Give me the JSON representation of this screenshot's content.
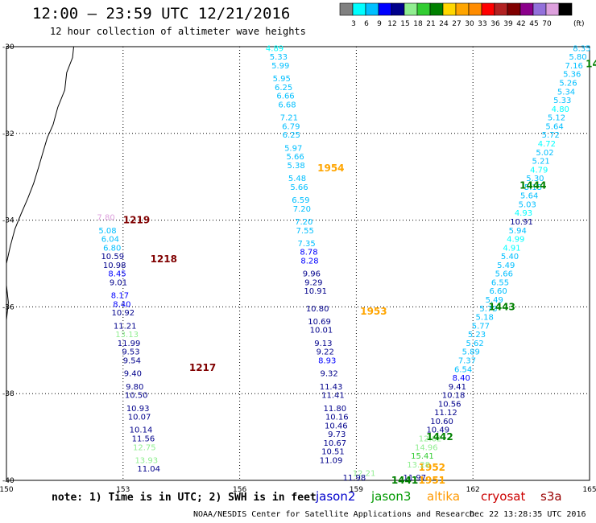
{
  "title": "12:00 – 23:59 UTC 12/21/2016",
  "subtitle": "12 hour collection of altimeter wave heights",
  "colorbar": {
    "unit_label": "(ft)",
    "colors": [
      "#808080",
      "#00ffff",
      "#00bfff",
      "#0000ff",
      "#00008b",
      "#90ee90",
      "#32cd32",
      "#008000",
      "#ffd700",
      "#ffa500",
      "#ff8c00",
      "#ff0000",
      "#b22222",
      "#800000",
      "#8b008b",
      "#9370db",
      "#dda0dd",
      "#000000"
    ],
    "labels": [
      "3",
      "6",
      "9",
      "12",
      "15",
      "18",
      "21",
      "24",
      "27",
      "30",
      "33",
      "36",
      "39",
      "42",
      "45",
      "70"
    ]
  },
  "footer": {
    "note": "note: 1) Time is in UTC; 2) SWH is in feet",
    "satellites": [
      {
        "name": "jason2",
        "color": "#0000cc"
      },
      {
        "name": "jason3",
        "color": "#009900"
      },
      {
        "name": "altika",
        "color": "#ff9900"
      },
      {
        "name": "cryosat",
        "color": "#cc0000"
      },
      {
        "name": "s3a",
        "color": "#990000"
      }
    ],
    "credit": "NOAA/NESDIS Center for Satellite Applications and Research",
    "timestamp": "Dec 22 13:28:35 UTC 2016"
  },
  "chart_data": {
    "type": "scatter",
    "xlim": [
      150,
      165
    ],
    "ylim": [
      -40,
      -30
    ],
    "x_ticks": [
      "150",
      "153",
      "156",
      "159",
      "162",
      "165"
    ],
    "y_ticks": [
      "-30",
      "-32",
      "-34",
      "-36",
      "-38",
      "-40"
    ],
    "grid": true,
    "tracks": [
      {
        "name": "track-1217",
        "time_label": "1217",
        "time_color": "#800000",
        "label_lon": 154.7,
        "label_lat": -37.4,
        "points": [
          {
            "lon": 152.56,
            "lat": -34.0,
            "v": "7.80",
            "c": "#dda0dd"
          },
          {
            "lon": 152.6,
            "lat": -34.3,
            "v": "5.08",
            "c": "#00bfff"
          },
          {
            "lon": 152.67,
            "lat": -34.5,
            "v": "6.04",
            "c": "#00bfff"
          },
          {
            "lon": 152.72,
            "lat": -34.7,
            "v": "6.80",
            "c": "#00bfff"
          },
          {
            "lon": 152.73,
            "lat": -34.9,
            "v": "10.59",
            "c": "#00008b"
          },
          {
            "lon": 152.78,
            "lat": -35.1,
            "v": "10.98",
            "c": "#00008b"
          },
          {
            "lon": 152.85,
            "lat": -35.3,
            "v": "8.45",
            "c": "#0000ff"
          },
          {
            "lon": 152.88,
            "lat": -35.5,
            "v": "9.01",
            "c": "#00008b"
          },
          {
            "lon": 152.92,
            "lat": -35.8,
            "v": "8.17",
            "c": "#0000ff"
          },
          {
            "lon": 152.97,
            "lat": -36.0,
            "v": "8.40",
            "c": "#0000ff"
          },
          {
            "lon": 153.0,
            "lat": -36.2,
            "v": "10.92",
            "c": "#00008b"
          },
          {
            "lon": 153.05,
            "lat": -36.5,
            "v": "11.21",
            "c": "#00008b"
          },
          {
            "lon": 153.1,
            "lat": -36.7,
            "v": "13.13",
            "c": "#90ee90"
          },
          {
            "lon": 153.15,
            "lat": -36.9,
            "v": "11.99",
            "c": "#00008b"
          },
          {
            "lon": 153.2,
            "lat": -37.1,
            "v": "9.53",
            "c": "#00008b"
          },
          {
            "lon": 153.23,
            "lat": -37.3,
            "v": "9.54",
            "c": "#00008b"
          },
          {
            "lon": 153.25,
            "lat": -37.6,
            "v": "9.40",
            "c": "#00008b"
          },
          {
            "lon": 153.3,
            "lat": -37.9,
            "v": "9.80",
            "c": "#00008b"
          },
          {
            "lon": 153.34,
            "lat": -38.1,
            "v": "10.50",
            "c": "#00008b"
          },
          {
            "lon": 153.38,
            "lat": -38.4,
            "v": "10.93",
            "c": "#00008b"
          },
          {
            "lon": 153.42,
            "lat": -38.6,
            "v": "10.07",
            "c": "#00008b"
          },
          {
            "lon": 153.46,
            "lat": -38.9,
            "v": "10.14",
            "c": "#00008b"
          },
          {
            "lon": 153.52,
            "lat": -39.1,
            "v": "11.56",
            "c": "#00008b"
          },
          {
            "lon": 153.55,
            "lat": -39.3,
            "v": "12.75",
            "c": "#90ee90"
          },
          {
            "lon": 153.6,
            "lat": -39.6,
            "v": "13.93",
            "c": "#90ee90"
          },
          {
            "lon": 153.66,
            "lat": -39.8,
            "v": "11.04",
            "c": "#00008b"
          }
        ]
      },
      {
        "name": "track-1218",
        "time_label": "1218",
        "time_color": "#800000",
        "label_lon": 153.7,
        "label_lat": -34.9,
        "points": []
      },
      {
        "name": "track-1219",
        "time_label": "1219",
        "time_color": "#800000",
        "label_lon": 153.0,
        "label_lat": -34.0,
        "points": []
      },
      {
        "name": "track-1954",
        "time_label": "1954",
        "time_color": "#ffa500",
        "label_lon": 158.0,
        "label_lat": -32.8,
        "points": [
          {
            "lon": 156.9,
            "lat": -30.1,
            "v": "4.89",
            "c": "#00ffff"
          },
          {
            "lon": 157.0,
            "lat": -30.3,
            "v": "5.33",
            "c": "#00bfff"
          },
          {
            "lon": 157.05,
            "lat": -30.5,
            "v": "5.99",
            "c": "#00bfff"
          },
          {
            "lon": 157.08,
            "lat": -30.8,
            "v": "5.95",
            "c": "#00bfff"
          },
          {
            "lon": 157.13,
            "lat": -31.0,
            "v": "6.25",
            "c": "#00bfff"
          },
          {
            "lon": 157.18,
            "lat": -31.2,
            "v": "6.66",
            "c": "#00bfff"
          },
          {
            "lon": 157.22,
            "lat": -31.4,
            "v": "6.68",
            "c": "#00bfff"
          },
          {
            "lon": 157.27,
            "lat": -31.7,
            "v": "7.21",
            "c": "#00bfff"
          },
          {
            "lon": 157.32,
            "lat": -31.9,
            "v": "6.79",
            "c": "#00bfff"
          },
          {
            "lon": 157.33,
            "lat": -32.1,
            "v": "6.25",
            "c": "#00bfff"
          },
          {
            "lon": 157.38,
            "lat": -32.4,
            "v": "5.97",
            "c": "#00bfff"
          },
          {
            "lon": 157.43,
            "lat": -32.6,
            "v": "5.66",
            "c": "#00bfff"
          },
          {
            "lon": 157.45,
            "lat": -32.8,
            "v": "5.38",
            "c": "#00bfff"
          },
          {
            "lon": 157.48,
            "lat": -33.1,
            "v": "5.48",
            "c": "#00bfff"
          },
          {
            "lon": 157.53,
            "lat": -33.3,
            "v": "5.66",
            "c": "#00bfff"
          },
          {
            "lon": 157.57,
            "lat": -33.6,
            "v": "6.59",
            "c": "#00bfff"
          },
          {
            "lon": 157.6,
            "lat": -33.8,
            "v": "7.20",
            "c": "#00bfff"
          },
          {
            "lon": 157.65,
            "lat": -34.1,
            "v": "7.20",
            "c": "#00bfff"
          },
          {
            "lon": 157.68,
            "lat": -34.3,
            "v": "7.55",
            "c": "#00bfff"
          },
          {
            "lon": 157.72,
            "lat": -34.6,
            "v": "7.35",
            "c": "#00bfff"
          },
          {
            "lon": 157.78,
            "lat": -34.8,
            "v": "8.78",
            "c": "#0000ff"
          },
          {
            "lon": 157.8,
            "lat": -35.0,
            "v": "8.28",
            "c": "#0000ff"
          },
          {
            "lon": 157.85,
            "lat": -35.3,
            "v": "9.96",
            "c": "#00008b"
          },
          {
            "lon": 157.9,
            "lat": -35.5,
            "v": "9.29",
            "c": "#00008b"
          },
          {
            "lon": 157.95,
            "lat": -35.7,
            "v": "10.91",
            "c": "#00008b"
          }
        ]
      },
      {
        "name": "track-1953",
        "time_label": "1953",
        "time_color": "#ffa500",
        "label_lon": 159.1,
        "label_lat": -36.1,
        "points": [
          {
            "lon": 158.0,
            "lat": -36.1,
            "v": "10.80",
            "c": "#00008b"
          },
          {
            "lon": 158.05,
            "lat": -36.4,
            "v": "10.69",
            "c": "#00008b"
          },
          {
            "lon": 158.1,
            "lat": -36.6,
            "v": "10.01",
            "c": "#00008b"
          },
          {
            "lon": 158.15,
            "lat": -36.9,
            "v": "9.13",
            "c": "#00008b"
          },
          {
            "lon": 158.2,
            "lat": -37.1,
            "v": "9.22",
            "c": "#00008b"
          },
          {
            "lon": 158.25,
            "lat": -37.3,
            "v": "8.93",
            "c": "#0000ff"
          },
          {
            "lon": 158.3,
            "lat": -37.6,
            "v": "9.32",
            "c": "#00008b"
          },
          {
            "lon": 158.35,
            "lat": -37.9,
            "v": "11.43",
            "c": "#00008b"
          },
          {
            "lon": 158.4,
            "lat": -38.1,
            "v": "11.41",
            "c": "#00008b"
          },
          {
            "lon": 158.45,
            "lat": -38.4,
            "v": "11.80",
            "c": "#00008b"
          },
          {
            "lon": 158.5,
            "lat": -38.6,
            "v": "10.16",
            "c": "#00008b"
          },
          {
            "lon": 158.48,
            "lat": -38.8,
            "v": "10.46",
            "c": "#00008b"
          },
          {
            "lon": 158.5,
            "lat": -39.0,
            "v": "9.73",
            "c": "#00008b"
          },
          {
            "lon": 158.45,
            "lat": -39.2,
            "v": "10.67",
            "c": "#00008b"
          },
          {
            "lon": 158.4,
            "lat": -39.4,
            "v": "10.51",
            "c": "#00008b"
          },
          {
            "lon": 158.35,
            "lat": -39.6,
            "v": "11.09",
            "c": "#00008b"
          }
        ]
      },
      {
        "name": "track-1952",
        "time_label": "1952",
        "time_color": "#ffa500",
        "label_lon": 160.6,
        "label_lat": -39.7,
        "points": [
          {
            "lon": 159.2,
            "lat": -39.9,
            "v": "12.21",
            "c": "#90ee90"
          },
          {
            "lon": 158.95,
            "lat": -40.0,
            "v": "11.98",
            "c": "#00008b"
          }
        ]
      },
      {
        "name": "track-1951",
        "time_label": "1951",
        "time_color": "#ffa500",
        "label_lon": 160.6,
        "label_lat": -40.0,
        "points": []
      },
      {
        "name": "track-1444",
        "time_label": "1444",
        "time_color": "#008000",
        "label_lon": 163.2,
        "label_lat": -33.2,
        "points": [
          {
            "lon": 164.8,
            "lat": -30.1,
            "v": "8.35",
            "c": "#00bfff"
          },
          {
            "lon": 164.7,
            "lat": -30.3,
            "v": "5.80",
            "c": "#00bfff"
          },
          {
            "lon": 164.6,
            "lat": -30.5,
            "v": "7.16",
            "c": "#00bfff"
          },
          {
            "lon": 164.55,
            "lat": -30.7,
            "v": "5.36",
            "c": "#00bfff"
          },
          {
            "lon": 164.45,
            "lat": -30.9,
            "v": "5.26",
            "c": "#00bfff"
          },
          {
            "lon": 164.4,
            "lat": -31.1,
            "v": "5.34",
            "c": "#00bfff"
          },
          {
            "lon": 164.3,
            "lat": -31.3,
            "v": "5.33",
            "c": "#00bfff"
          },
          {
            "lon": 164.25,
            "lat": -31.5,
            "v": "4.80",
            "c": "#00ffff"
          },
          {
            "lon": 164.15,
            "lat": -31.7,
            "v": "5.12",
            "c": "#00bfff"
          },
          {
            "lon": 164.1,
            "lat": -31.9,
            "v": "5.64",
            "c": "#00bfff"
          },
          {
            "lon": 164.0,
            "lat": -32.1,
            "v": "5.72",
            "c": "#00bfff"
          },
          {
            "lon": 163.9,
            "lat": -32.3,
            "v": "4.72",
            "c": "#00ffff"
          },
          {
            "lon": 163.85,
            "lat": -32.5,
            "v": "5.02",
            "c": "#00bfff"
          },
          {
            "lon": 163.75,
            "lat": -32.7,
            "v": "5.21",
            "c": "#00bfff"
          },
          {
            "lon": 163.7,
            "lat": -32.9,
            "v": "4.79",
            "c": "#00ffff"
          },
          {
            "lon": 163.6,
            "lat": -33.1,
            "v": "5.30",
            "c": "#00bfff"
          },
          {
            "lon": 163.55,
            "lat": -33.3,
            "v": "5.15",
            "c": "#00bfff"
          },
          {
            "lon": 163.45,
            "lat": -33.5,
            "v": "5.64",
            "c": "#00bfff"
          },
          {
            "lon": 163.4,
            "lat": -33.7,
            "v": "5.03",
            "c": "#00bfff"
          },
          {
            "lon": 163.3,
            "lat": -33.9,
            "v": "4.93",
            "c": "#00ffff"
          },
          {
            "lon": 163.25,
            "lat": -34.1,
            "v": "10.91",
            "c": "#00008b"
          },
          {
            "lon": 163.15,
            "lat": -34.3,
            "v": "5.94",
            "c": "#00bfff"
          },
          {
            "lon": 163.1,
            "lat": -34.5,
            "v": "4.99",
            "c": "#00ffff"
          },
          {
            "lon": 163.0,
            "lat": -34.7,
            "v": "4.91",
            "c": "#00ffff"
          },
          {
            "lon": 162.95,
            "lat": -34.9,
            "v": "5.40",
            "c": "#00bfff"
          },
          {
            "lon": 162.85,
            "lat": -35.1,
            "v": "5.49",
            "c": "#00bfff"
          },
          {
            "lon": 162.8,
            "lat": -35.3,
            "v": "5.66",
            "c": "#00bfff"
          },
          {
            "lon": 162.7,
            "lat": -35.5,
            "v": "6.55",
            "c": "#00bfff"
          },
          {
            "lon": 162.65,
            "lat": -35.7,
            "v": "6.60",
            "c": "#00bfff"
          },
          {
            "lon": 162.55,
            "lat": -35.9,
            "v": "5.49",
            "c": "#00bfff"
          }
        ]
      },
      {
        "name": "track-1443",
        "time_label": "1443",
        "time_color": "#008000",
        "label_lon": 162.4,
        "label_lat": -36.0,
        "points": [
          {
            "lon": 162.4,
            "lat": -36.1,
            "v": "5.73",
            "c": "#00bfff"
          },
          {
            "lon": 162.3,
            "lat": -36.3,
            "v": "5.18",
            "c": "#00bfff"
          },
          {
            "lon": 162.2,
            "lat": -36.5,
            "v": "5.77",
            "c": "#00bfff"
          },
          {
            "lon": 162.1,
            "lat": -36.7,
            "v": "5.23",
            "c": "#00bfff"
          },
          {
            "lon": 162.05,
            "lat": -36.9,
            "v": "5.62",
            "c": "#00bfff"
          },
          {
            "lon": 161.95,
            "lat": -37.1,
            "v": "5.89",
            "c": "#00bfff"
          },
          {
            "lon": 161.85,
            "lat": -37.3,
            "v": "7.37",
            "c": "#00bfff"
          },
          {
            "lon": 161.75,
            "lat": -37.5,
            "v": "6.54",
            "c": "#00bfff"
          },
          {
            "lon": 161.7,
            "lat": -37.7,
            "v": "8.40",
            "c": "#0000ff"
          },
          {
            "lon": 161.6,
            "lat": -37.9,
            "v": "9.41",
            "c": "#00008b"
          },
          {
            "lon": 161.5,
            "lat": -38.1,
            "v": "10.18",
            "c": "#00008b"
          },
          {
            "lon": 161.4,
            "lat": -38.3,
            "v": "10.56",
            "c": "#00008b"
          },
          {
            "lon": 161.3,
            "lat": -38.5,
            "v": "11.12",
            "c": "#00008b"
          },
          {
            "lon": 161.2,
            "lat": -38.7,
            "v": "10.60",
            "c": "#00008b"
          },
          {
            "lon": 161.1,
            "lat": -38.9,
            "v": "10.49",
            "c": "#00008b"
          }
        ]
      },
      {
        "name": "track-1442",
        "time_label": "1442",
        "time_color": "#008000",
        "label_lon": 160.8,
        "label_lat": -39.0,
        "points": [
          {
            "lon": 160.9,
            "lat": -39.1,
            "v": "12.62",
            "c": "#90ee90"
          },
          {
            "lon": 160.8,
            "lat": -39.3,
            "v": "14.96",
            "c": "#90ee90"
          },
          {
            "lon": 160.7,
            "lat": -39.5,
            "v": "15.41",
            "c": "#32cd32"
          },
          {
            "lon": 160.6,
            "lat": -39.7,
            "v": "13.28",
            "c": "#90ee90"
          },
          {
            "lon": 160.5,
            "lat": -40.0,
            "v": "11.97",
            "c": "#00008b"
          }
        ]
      },
      {
        "name": "track-1441",
        "time_label": "1441",
        "time_color": "#008000",
        "label_lon": 159.9,
        "label_lat": -40.0,
        "points": []
      },
      {
        "name": "track-14",
        "time_label": "14",
        "time_color": "#008000",
        "label_lon": 164.9,
        "label_lat": -30.4,
        "points": []
      }
    ]
  }
}
